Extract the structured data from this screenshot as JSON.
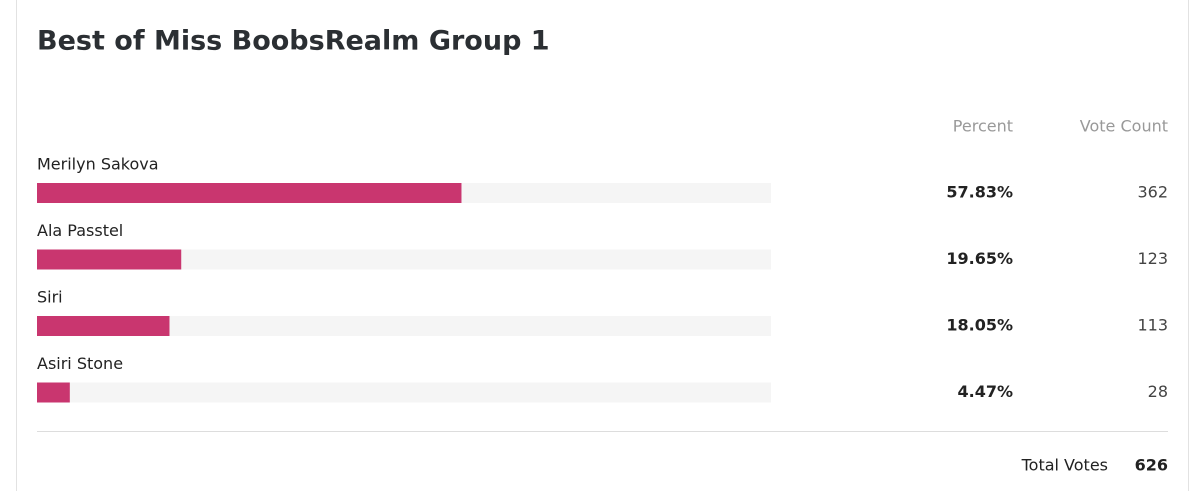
{
  "chart_data": {
    "type": "poll",
    "title": "Best of Miss BoobsRealm Group 1",
    "column_labels": [
      "Percent",
      "Vote Count"
    ],
    "categories": [
      "Merilyn Sakova",
      "Ala Passtel",
      "Siri",
      "Asiri Stone"
    ],
    "values": [
      57.83,
      19.65,
      18.05,
      4.47
    ],
    "value_labels": [
      "57.83%",
      "19.65%",
      "18.05%",
      "4.47%"
    ],
    "votes": [
      362,
      123,
      113,
      28
    ],
    "xlim": [
      0,
      100
    ],
    "color": "#c9366f",
    "total_label": "Total Votes",
    "total": 626
  }
}
